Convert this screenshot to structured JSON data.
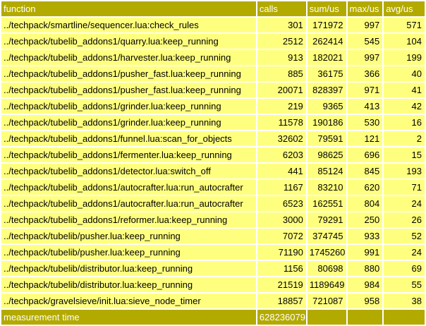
{
  "headers": [
    "function",
    "calls",
    "sum/us",
    "max/us",
    "avg/us"
  ],
  "rows": [
    {
      "function": "../techpack/smartline/sequencer.lua:check_rules",
      "calls": "301",
      "sum": "171972",
      "max": "997",
      "avg": "571"
    },
    {
      "function": "../techpack/tubelib_addons1/quarry.lua:keep_running",
      "calls": "2512",
      "sum": "262414",
      "max": "545",
      "avg": "104"
    },
    {
      "function": "../techpack/tubelib_addons1/harvester.lua:keep_running",
      "calls": "913",
      "sum": "182021",
      "max": "997",
      "avg": "199"
    },
    {
      "function": "../techpack/tubelib_addons1/pusher_fast.lua:keep_running",
      "calls": "885",
      "sum": "36175",
      "max": "366",
      "avg": "40"
    },
    {
      "function": "../techpack/tubelib_addons1/pusher_fast.lua:keep_running",
      "calls": "20071",
      "sum": "828397",
      "max": "971",
      "avg": "41"
    },
    {
      "function": "../techpack/tubelib_addons1/grinder.lua:keep_running",
      "calls": "219",
      "sum": "9365",
      "max": "413",
      "avg": "42"
    },
    {
      "function": "../techpack/tubelib_addons1/grinder.lua:keep_running",
      "calls": "11578",
      "sum": "190186",
      "max": "530",
      "avg": "16"
    },
    {
      "function": "../techpack/tubelib_addons1/funnel.lua:scan_for_objects",
      "calls": "32602",
      "sum": "79591",
      "max": "121",
      "avg": "2"
    },
    {
      "function": "../techpack/tubelib_addons1/fermenter.lua:keep_running",
      "calls": "6203",
      "sum": "98625",
      "max": "696",
      "avg": "15"
    },
    {
      "function": "../techpack/tubelib_addons1/detector.lua:switch_off",
      "calls": "441",
      "sum": "85124",
      "max": "845",
      "avg": "193"
    },
    {
      "function": "../techpack/tubelib_addons1/autocrafter.lua:run_autocrafter",
      "calls": "1167",
      "sum": "83210",
      "max": "620",
      "avg": "71"
    },
    {
      "function": "../techpack/tubelib_addons1/autocrafter.lua:run_autocrafter",
      "calls": "6523",
      "sum": "162551",
      "max": "804",
      "avg": "24"
    },
    {
      "function": "../techpack/tubelib_addons1/reformer.lua:keep_running",
      "calls": "3000",
      "sum": "79291",
      "max": "250",
      "avg": "26"
    },
    {
      "function": "../techpack/tubelib/pusher.lua:keep_running",
      "calls": "7072",
      "sum": "374745",
      "max": "933",
      "avg": "52"
    },
    {
      "function": "../techpack/tubelib/pusher.lua:keep_running",
      "calls": "71190",
      "sum": "1745260",
      "max": "991",
      "avg": "24"
    },
    {
      "function": "../techpack/tubelib/distributor.lua:keep_running",
      "calls": "1156",
      "sum": "80698",
      "max": "880",
      "avg": "69"
    },
    {
      "function": "../techpack/tubelib/distributor.lua:keep_running",
      "calls": "21519",
      "sum": "1189649",
      "max": "984",
      "avg": "55"
    },
    {
      "function": "../techpack/gravelsieve/init.lua:sieve_node_timer",
      "calls": "18857",
      "sum": "721087",
      "max": "958",
      "avg": "38"
    }
  ],
  "footer": {
    "label": "measurement time",
    "value": "628236079"
  },
  "colors": {
    "header_bg": "#b3aa00",
    "row_bg": "#ffff7f",
    "header_text": "#ffffff"
  }
}
